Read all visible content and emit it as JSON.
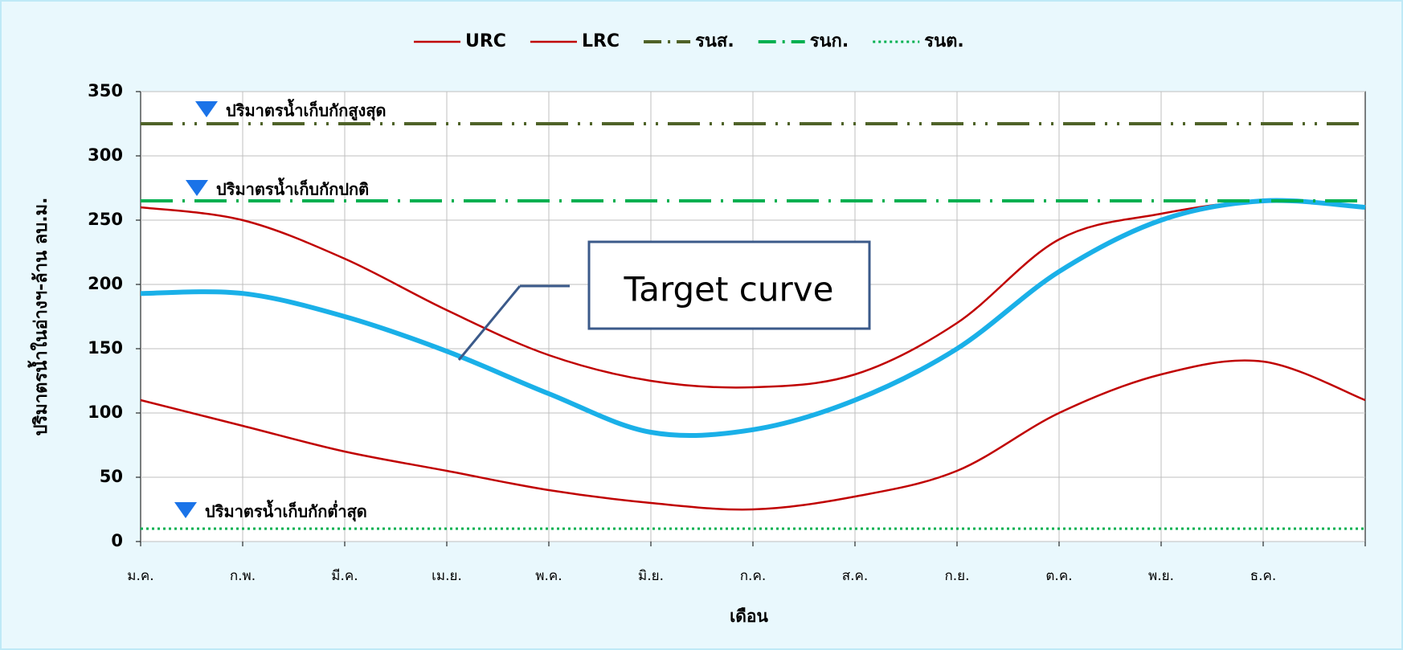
{
  "chart_data": {
    "type": "line",
    "categories": [
      "ม.ค.",
      "ก.พ.",
      "มี.ค.",
      "เม.ย.",
      "พ.ค.",
      "มิ.ย.",
      "ก.ค.",
      "ส.ค.",
      "ก.ย.",
      "ต.ค.",
      "พ.ย.",
      "ธ.ค.",
      null
    ],
    "series": [
      {
        "name": "URC",
        "color": "#c00000",
        "style": "solid",
        "values": [
          260,
          250,
          220,
          180,
          145,
          125,
          120,
          130,
          170,
          235,
          255,
          265,
          260
        ]
      },
      {
        "name": "LRC",
        "color": "#c00000",
        "style": "solid",
        "values": [
          110,
          90,
          70,
          55,
          40,
          30,
          25,
          35,
          55,
          100,
          130,
          140,
          110
        ]
      },
      {
        "color": "#1ab0e8",
        "style": "thick",
        "values": [
          193,
          193,
          175,
          148,
          115,
          85,
          87,
          110,
          150,
          210,
          250,
          265,
          260
        ]
      },
      {
        "name": "รนส.",
        "color": "#4f6228",
        "style": "dash-dot-dot",
        "values": [
          325,
          325,
          325,
          325,
          325,
          325,
          325,
          325,
          325,
          325,
          325,
          325,
          325
        ]
      },
      {
        "name": "รนก.",
        "color": "#00b050",
        "style": "dash-dot",
        "values": [
          265,
          265,
          265,
          265,
          265,
          265,
          265,
          265,
          265,
          265,
          265,
          265,
          265
        ]
      },
      {
        "name": "รนต.",
        "color": "#00b050",
        "style": "dotted",
        "values": [
          10,
          10,
          10,
          10,
          10,
          10,
          10,
          10,
          10,
          10,
          10,
          10,
          10
        ]
      }
    ],
    "ylim": [
      0,
      350
    ],
    "yticks": [
      0,
      50,
      100,
      150,
      200,
      250,
      300,
      350
    ],
    "grid": true,
    "x_label": "เดือน",
    "y_label": "ปริมาตรน้ำในอ่างฯ-ล้าน ลบ.ม.",
    "annotations": [
      "ปริมาตรน้ำเก็บกักสูงสุด",
      "ปริมาตรน้ำเก็บกักปกติ",
      "ปริมาตรน้ำเก็บกักต่ำสุด",
      "Target curve"
    ],
    "legend": "top"
  }
}
